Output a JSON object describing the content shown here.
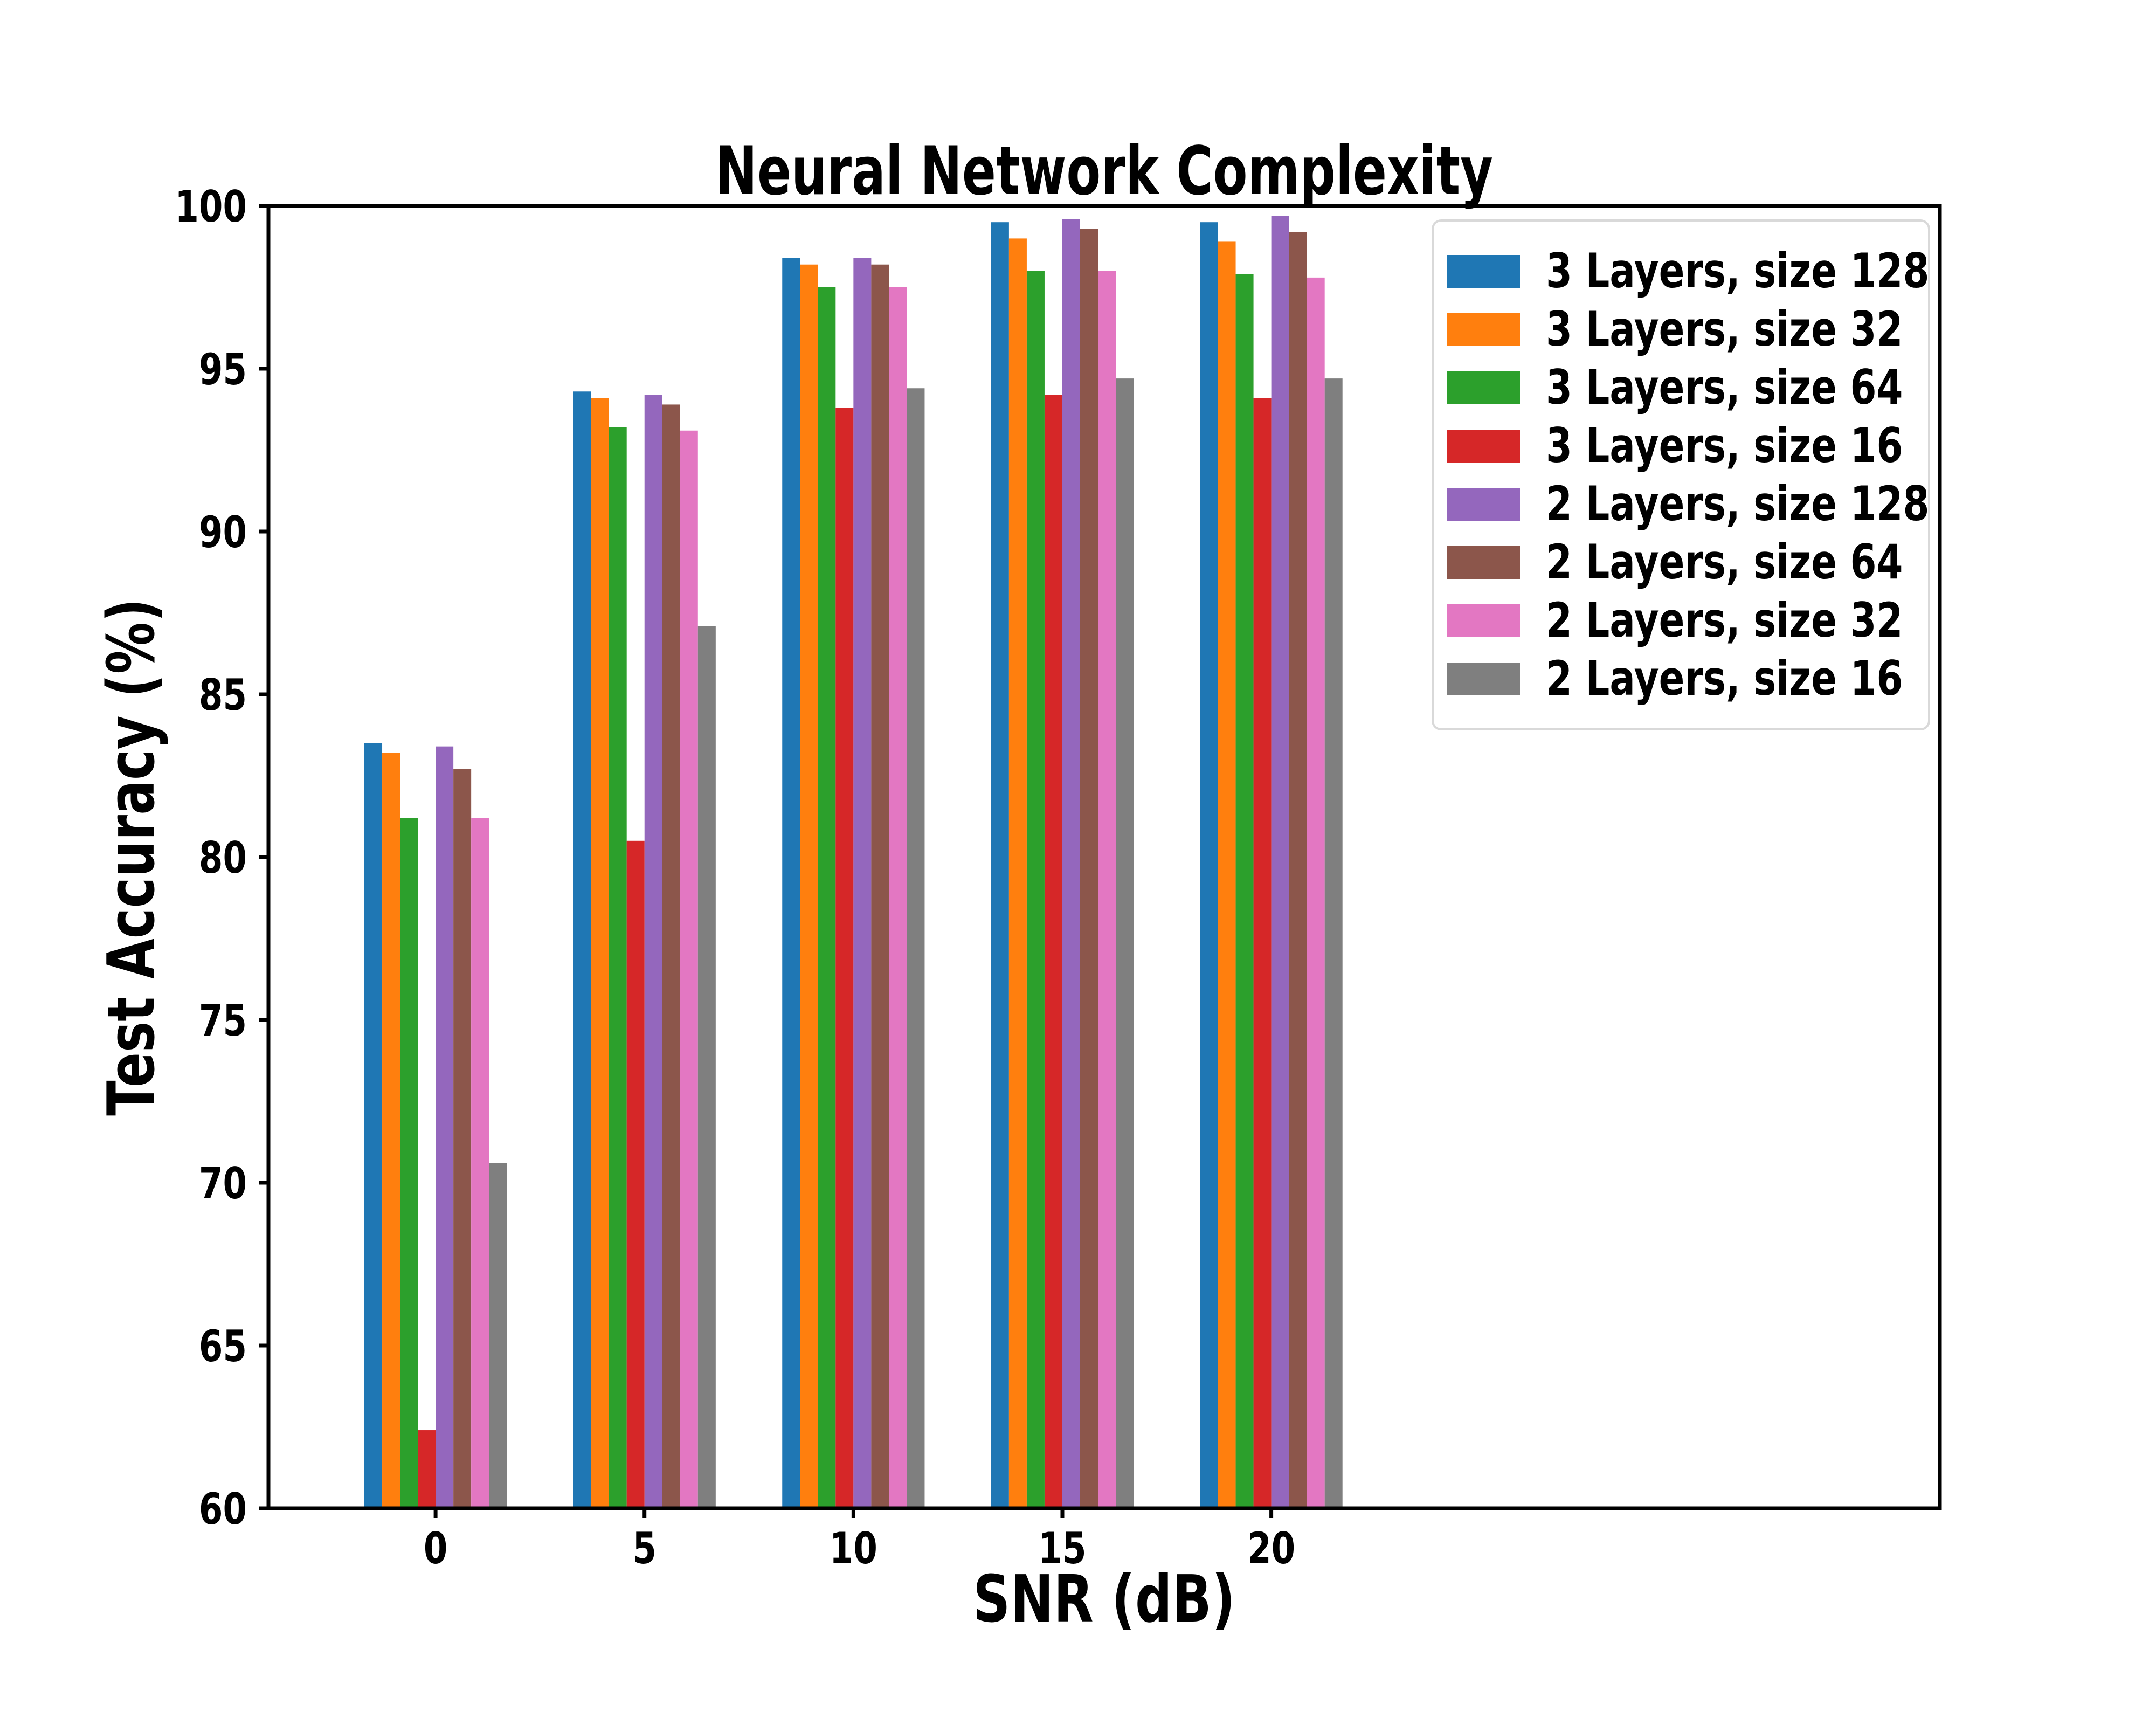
{
  "chart_data": {
    "type": "bar",
    "title": "Neural Network Complexity",
    "xlabel": "SNR (dB)",
    "ylabel": "Test Accuracy (%)",
    "categories": [
      0,
      5,
      10,
      15,
      20
    ],
    "xtick_labels": [
      "0",
      "5",
      "10",
      "15",
      "20"
    ],
    "yticks": [
      60,
      65,
      70,
      75,
      80,
      85,
      90,
      95,
      100
    ],
    "ytick_labels": [
      "60",
      "65",
      "70",
      "75",
      "80",
      "85",
      "90",
      "95",
      "100"
    ],
    "ylim": [
      60,
      100
    ],
    "xlim": [
      -4,
      36
    ],
    "bar_width": 0.426,
    "grid": false,
    "legend": {
      "position": "upper right",
      "border_color": "#d9d9d9"
    },
    "series": [
      {
        "name": "3 Layers, size 128",
        "color": "#1f77b4",
        "values": [
          83.5,
          94.3,
          98.4,
          99.5,
          99.5
        ]
      },
      {
        "name": "3 Layers, size 32",
        "color": "#ff7f0e",
        "values": [
          83.2,
          94.1,
          98.2,
          99.0,
          98.9
        ]
      },
      {
        "name": "3 Layers, size 64",
        "color": "#2ca02c",
        "values": [
          81.2,
          93.2,
          97.5,
          98.0,
          97.9
        ]
      },
      {
        "name": "3 Layers, size 16",
        "color": "#d62728",
        "values": [
          62.4,
          80.5,
          93.8,
          94.2,
          94.1
        ]
      },
      {
        "name": "2 Layers, size 128",
        "color": "#9467bd",
        "values": [
          83.4,
          94.2,
          98.4,
          99.6,
          99.7
        ]
      },
      {
        "name": "2 Layers, size 64",
        "color": "#8c564b",
        "values": [
          82.7,
          93.9,
          98.2,
          99.3,
          99.2
        ]
      },
      {
        "name": "2 Layers, size 32",
        "color": "#e377c2",
        "values": [
          81.2,
          93.1,
          97.5,
          98.0,
          97.8
        ]
      },
      {
        "name": "2 Layers, size 16",
        "color": "#7f7f7f",
        "values": [
          70.6,
          87.1,
          94.4,
          94.7,
          94.7
        ]
      }
    ]
  }
}
